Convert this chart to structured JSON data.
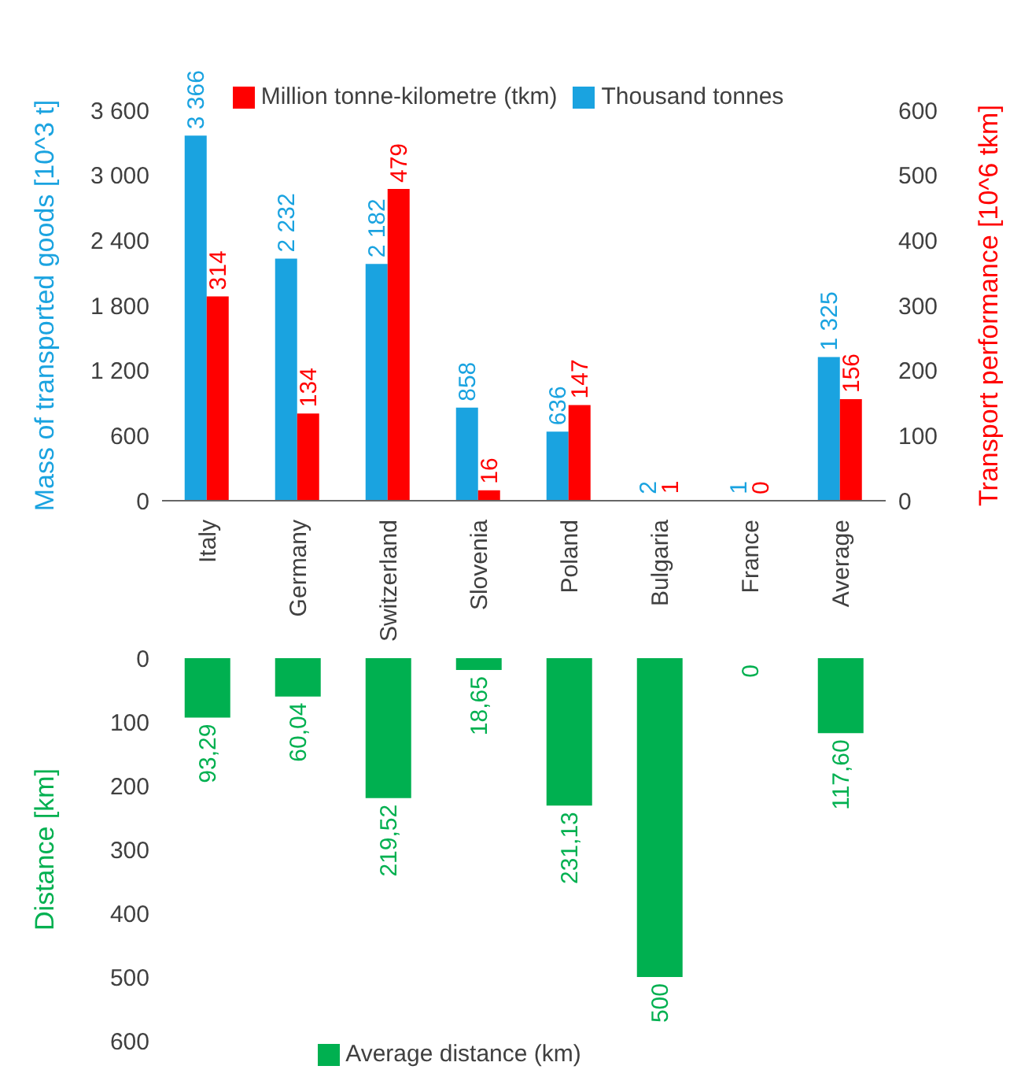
{
  "chart_data": [
    {
      "type": "bar",
      "ylabel": "Mass of transported goods [10^3 t]",
      "y2label": "Transport performance [10^6 tkm]",
      "categories": [
        "Italy",
        "Germany",
        "Switzerland",
        "Slovenia",
        "Poland",
        "Bulgaria",
        "France",
        "Average"
      ],
      "series": [
        {
          "name": "Thousand tonnes",
          "color": "#1aa3e0",
          "values": [
            3366,
            2232,
            2182,
            858,
            636,
            2,
            1,
            1325
          ],
          "value_labels": [
            "3 366",
            "2 232",
            "2 182",
            "858",
            "636",
            "2",
            "1",
            "1 325"
          ]
        },
        {
          "name": "Million tonne-kilometre (tkm)",
          "color": "#ff0000",
          "axis": "y2",
          "values": [
            314,
            134,
            479,
            16,
            147,
            1,
            0,
            156
          ],
          "value_labels": [
            "314",
            "134",
            "479",
            "16",
            "147",
            "1",
            "0",
            "156"
          ]
        }
      ],
      "ylim": [
        0,
        3600
      ],
      "yticks": [
        0,
        {
          "value": 600,
          "label": "600"
        },
        {
          "value": 1200,
          "label": "1 200"
        },
        {
          "value": 1800,
          "label": "1 800"
        },
        {
          "value": 2400,
          "label": "2 400"
        },
        {
          "value": 3000,
          "label": "3 000"
        },
        {
          "value": 3600,
          "label": "3 600"
        }
      ],
      "y2lim": [
        0,
        600
      ],
      "y2ticks": [
        0,
        100,
        200,
        300,
        400,
        500,
        600
      ],
      "legend": "top",
      "grid": false
    },
    {
      "type": "bar",
      "ylabel": "Distance [km]",
      "categories": [
        null,
        null,
        null,
        null,
        null,
        null,
        null,
        null
      ],
      "series": [
        {
          "name": "Average distance (km)",
          "color": "#00b050",
          "values": [
            93.29,
            60.04,
            219.52,
            18.65,
            231.13,
            500,
            0,
            117.6
          ],
          "value_labels": [
            "93,29",
            "60,04",
            "219,52",
            "18,65",
            "231,13",
            "500",
            "0",
            "117,60"
          ]
        }
      ],
      "ylim": [
        600,
        0
      ],
      "yticks": [
        0,
        100,
        200,
        300,
        400,
        500,
        600
      ],
      "tick_labels": "y",
      "legend": "bottom",
      "grid": false
    }
  ]
}
